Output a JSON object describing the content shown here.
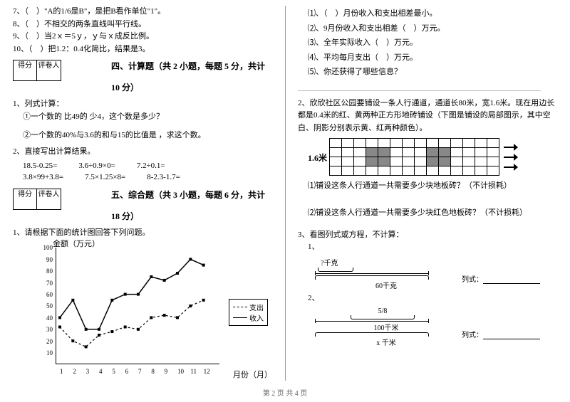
{
  "left": {
    "tf": [
      {
        "n": "7、",
        "t": "（　）\"A的1/6是B\"，是把B看作单位\"1\"。"
      },
      {
        "n": "8、",
        "t": "（　）不相交的两条直线叫平行线。"
      },
      {
        "n": "9、",
        "t": "（　）当2ｘ＝5ｙ，ｙ与ｘ成反比例。"
      },
      {
        "n": "10、",
        "t": "（　）把1.2：0.4化简比，结果是3。"
      }
    ],
    "score_a": "得分",
    "score_b": "评卷人",
    "sec4": "四、计算题（共 2 小题，每题 5 分，共计 10 分）",
    "q1": "1、列式计算：",
    "q1a": "①一个数的 比49的 少4，这个数是多少？",
    "q1b": "②一个数的40%与3.6的和与15的比值是 ，求这个数。",
    "q2": "2、直接写出计算结果。",
    "calc": [
      [
        "18.5-0.25=",
        "3.6÷0.9×0=",
        "7.2÷0.1="
      ],
      [
        "3.8×99+3.8=",
        "7.5×1.25×8=",
        "8-2.3-1.7="
      ]
    ],
    "sec5": "五、综合题（共 3 小题，每题 6 分，共计 18 分）",
    "q5_1": "1、请根据下面的统计图回答下列问题。",
    "chart": {
      "title": "金额（万元）",
      "xlabel": "月份（月）",
      "y_ticks": [
        10,
        20,
        30,
        40,
        50,
        60,
        70,
        80,
        90,
        100
      ],
      "x_ticks": [
        1,
        2,
        3,
        4,
        5,
        6,
        7,
        8,
        9,
        10,
        11,
        12
      ],
      "legend": [
        "支出",
        "收入"
      ],
      "income": [
        40,
        55,
        30,
        30,
        55,
        60,
        60,
        75,
        72,
        78,
        90,
        85
      ],
      "expense": [
        32,
        20,
        15,
        25,
        28,
        32,
        30,
        40,
        42,
        40,
        50,
        55
      ],
      "y_max": 100
    }
  },
  "right": {
    "subs": [
      "⑴、（　）月份收入和支出相差最小。",
      "⑵、9月份收入和支出相差（　）万元。",
      "⑶、全年实际收入（　）万元。",
      "⑷、平均每月支出（　）万元。",
      "⑸、你还获得了哪些信息？"
    ],
    "hr": "______________________________________________________________",
    "q2": "2、欣欣社区公园要铺设一条人行通道，通道长80米，宽1.6米。现在用边长都是0.4米的红、黄两种正方形地砖铺设（下图是铺设的局部图示，其中空白、阴影分别表示黄、红两种颜色）。",
    "width_lbl": "1.6米",
    "q2a": "⑴铺设这条人行通道一共需要多少块地板砖？（不计损耗）",
    "q2b": "⑵铺设这条人行通道一共需要多少块红色地板砖？（不计损耗）",
    "q3": "3、看图列式或方程，不计算：",
    "d1": {
      "top": "?千克",
      "bottom": "60千克",
      "ans": "列式："
    },
    "d2": {
      "frac": "5/8",
      "mid": "100千米",
      "bottom": "x 千米",
      "ans": "列式："
    }
  },
  "footer": "第 2 页 共 4 页"
}
